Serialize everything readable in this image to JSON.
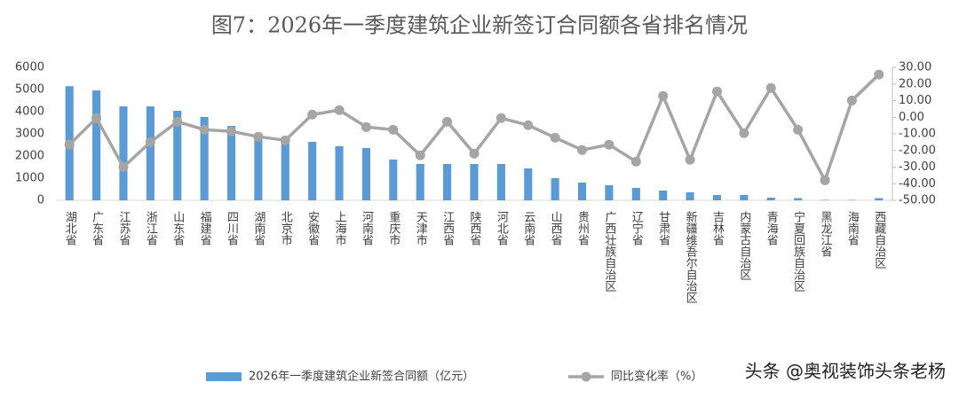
{
  "chart_data": {
    "type": "bar-line",
    "title": "图7：2026年一季度建筑企业新签订合同额各省排名情况",
    "categories": [
      "湖北省",
      "广东省",
      "江苏省",
      "浙江省",
      "山东省",
      "福建省",
      "四川省",
      "湖南省",
      "北京市",
      "安徽省",
      "上海市",
      "河南省",
      "重庆市",
      "天津市",
      "江西省",
      "陕西省",
      "河北省",
      "云南省",
      "山西省",
      "贵州省",
      "广西壮族自治区",
      "辽宁省",
      "甘肃省",
      "新疆维吾尔自治区",
      "吉林省",
      "内蒙古自治区",
      "青海省",
      "宁夏回族自治区",
      "黑龙江省",
      "海南省",
      "西藏自治区"
    ],
    "series": [
      {
        "name": "2026年一季度建筑企业新签合同额（亿元）",
        "color": "#5b9bd5",
        "type": "bar",
        "values": [
          5150,
          4960,
          4240,
          4240,
          4040,
          3760,
          3360,
          2900,
          2700,
          2640,
          2440,
          2360,
          1840,
          1640,
          1640,
          1640,
          1640,
          1440,
          1000,
          800,
          680,
          560,
          440,
          360,
          240,
          240,
          120,
          100,
          20,
          20,
          100
        ]
      },
      {
        "name": "同比变化率（%）",
        "color": "#a5a5a5",
        "type": "line",
        "axis": "y2",
        "values": [
          -16.5,
          -0.5,
          -30,
          -15,
          -2.7,
          -7.5,
          -8.5,
          -11.7,
          -13.9,
          1.6,
          4.3,
          -5.9,
          -7.5,
          -22.9,
          -2.7,
          -21.9,
          -0.5,
          -4.8,
          -12.3,
          -19.7,
          -16.5,
          -26.7,
          12.8,
          -25.6,
          15.5,
          -9.6,
          17.6,
          -7.5,
          -37.9,
          10.1,
          25.7
        ]
      }
    ],
    "ylim": [
      0,
      6000
    ],
    "yticks": [
      0,
      1000,
      2000,
      3000,
      4000,
      5000,
      6000
    ],
    "y2lim": [
      -50,
      30
    ],
    "y2ticks": [
      {
        "value": -50,
        "label": "-50.00"
      },
      {
        "value": -40,
        "label": "-40.00"
      },
      {
        "value": -30,
        "label": "-30.00"
      },
      {
        "value": -20,
        "label": "-20.00"
      },
      {
        "value": -10,
        "label": "-10.00"
      },
      {
        "value": 0,
        "label": "0.00"
      },
      {
        "value": 10,
        "label": "10.00"
      },
      {
        "value": 20,
        "label": "20.00"
      },
      {
        "value": 30,
        "label": "30.00"
      }
    ],
    "legend": "bottom",
    "watermark": "头条 @奥视装饰头条老杨"
  }
}
